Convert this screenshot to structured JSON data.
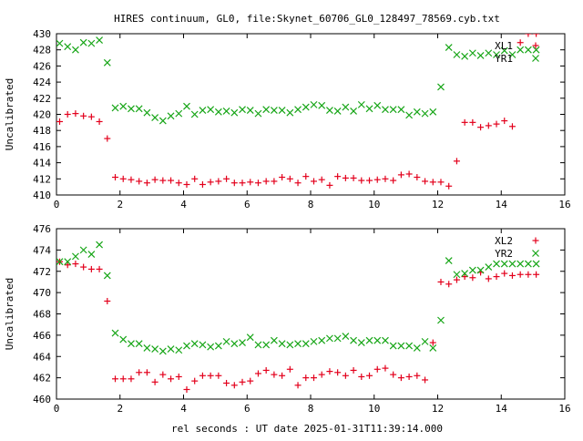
{
  "title": "HIRES continuum, GL0, file:Skynet_60706_GL0_128497_78569.cyb.txt",
  "xlabel": "rel seconds : UT date 2025-01-31T11:39:14.000",
  "colors": {
    "series1": "#e3001c",
    "series2": "#16a516",
    "axis": "#000000",
    "background": "#ffffff"
  },
  "chart_data": [
    {
      "type": "scatter",
      "ylabel": "Uncalibrated",
      "xlim": [
        0,
        16
      ],
      "ylim": [
        410,
        430
      ],
      "xticks": [
        0,
        2,
        4,
        6,
        8,
        10,
        12,
        14,
        16
      ],
      "yticks": [
        410,
        412,
        414,
        416,
        418,
        420,
        422,
        424,
        426,
        428,
        430
      ],
      "legend_position": "top-right",
      "grid": false,
      "series": [
        {
          "name": "XL1",
          "marker": "plus",
          "color": "#e3001c",
          "x": [
            0.1,
            0.35,
            0.6,
            0.85,
            1.1,
            1.35,
            1.6,
            1.85,
            2.1,
            2.35,
            2.6,
            2.85,
            3.1,
            3.35,
            3.6,
            3.85,
            4.1,
            4.35,
            4.6,
            4.85,
            5.1,
            5.35,
            5.6,
            5.85,
            6.1,
            6.35,
            6.6,
            6.85,
            7.1,
            7.35,
            7.6,
            7.85,
            8.1,
            8.35,
            8.6,
            8.85,
            9.1,
            9.35,
            9.6,
            9.85,
            10.1,
            10.35,
            10.6,
            10.85,
            11.1,
            11.35,
            11.6,
            11.85,
            12.1,
            12.35,
            12.6,
            12.85,
            13.1,
            13.35,
            13.6,
            13.85,
            14.1,
            14.35,
            14.6,
            14.85,
            15.1
          ],
          "y": [
            419.1,
            420.0,
            420.1,
            419.8,
            419.7,
            419.1,
            417.0,
            412.2,
            412.0,
            411.9,
            411.7,
            411.5,
            411.9,
            411.8,
            411.8,
            411.5,
            411.3,
            412.0,
            411.3,
            411.6,
            411.7,
            412.0,
            411.5,
            411.5,
            411.6,
            411.5,
            411.7,
            411.7,
            412.2,
            412.0,
            411.5,
            412.3,
            411.7,
            411.9,
            411.2,
            412.3,
            412.1,
            412.1,
            411.8,
            411.8,
            411.9,
            412.0,
            411.8,
            412.5,
            412.6,
            412.2,
            411.7,
            411.6,
            411.6,
            411.1,
            414.2,
            419.0,
            419.0,
            418.4,
            418.6,
            418.8,
            419.2,
            418.5,
            428.9,
            430.0,
            430.0
          ]
        },
        {
          "name": "YR1",
          "marker": "cross",
          "color": "#16a516",
          "x": [
            0.1,
            0.35,
            0.6,
            0.85,
            1.1,
            1.35,
            1.6,
            1.85,
            2.1,
            2.35,
            2.6,
            2.85,
            3.1,
            3.35,
            3.6,
            3.85,
            4.1,
            4.35,
            4.6,
            4.85,
            5.1,
            5.35,
            5.6,
            5.85,
            6.1,
            6.35,
            6.6,
            6.85,
            7.1,
            7.35,
            7.6,
            7.85,
            8.1,
            8.35,
            8.6,
            8.85,
            9.1,
            9.35,
            9.6,
            9.85,
            10.1,
            10.35,
            10.6,
            10.85,
            11.1,
            11.35,
            11.6,
            11.85,
            12.1,
            12.35,
            12.6,
            12.85,
            13.1,
            13.35,
            13.6,
            13.85,
            14.1,
            14.35,
            14.6,
            14.85,
            15.1
          ],
          "y": [
            428.8,
            428.4,
            428.0,
            428.9,
            428.8,
            429.2,
            426.4,
            420.8,
            421.0,
            420.7,
            420.7,
            420.2,
            419.6,
            419.2,
            419.8,
            420.1,
            421.0,
            420.0,
            420.5,
            420.6,
            420.3,
            420.4,
            420.2,
            420.6,
            420.5,
            420.1,
            420.6,
            420.5,
            420.5,
            420.2,
            420.6,
            420.9,
            421.2,
            421.1,
            420.5,
            420.4,
            420.9,
            420.4,
            421.2,
            420.7,
            421.1,
            420.6,
            420.6,
            420.6,
            419.9,
            420.3,
            420.1,
            420.3,
            423.4,
            428.3,
            427.4,
            427.2,
            427.6,
            427.3,
            427.6,
            427.4,
            427.9,
            427.4,
            428.0,
            428.0,
            428.0
          ]
        }
      ]
    },
    {
      "type": "scatter",
      "ylabel": "Uncalibrated",
      "xlim": [
        0,
        16
      ],
      "ylim": [
        460,
        476
      ],
      "xticks": [
        0,
        2,
        4,
        6,
        8,
        10,
        12,
        14,
        16
      ],
      "yticks": [
        460,
        462,
        464,
        466,
        468,
        470,
        472,
        474,
        476
      ],
      "legend_position": "top-right",
      "grid": false,
      "series": [
        {
          "name": "XL2",
          "marker": "plus",
          "color": "#e3001c",
          "x": [
            0.1,
            0.35,
            0.6,
            0.85,
            1.1,
            1.35,
            1.6,
            1.85,
            2.1,
            2.35,
            2.6,
            2.85,
            3.1,
            3.35,
            3.6,
            3.85,
            4.1,
            4.35,
            4.6,
            4.85,
            5.1,
            5.35,
            5.6,
            5.85,
            6.1,
            6.35,
            6.6,
            6.85,
            7.1,
            7.35,
            7.6,
            7.85,
            8.1,
            8.35,
            8.6,
            8.85,
            9.1,
            9.35,
            9.6,
            9.85,
            10.1,
            10.35,
            10.6,
            10.85,
            11.1,
            11.35,
            11.6,
            11.85,
            12.1,
            12.35,
            12.6,
            12.85,
            13.1,
            13.35,
            13.6,
            13.85,
            14.1,
            14.35,
            14.6,
            14.85,
            15.1
          ],
          "y": [
            472.9,
            472.6,
            472.7,
            472.4,
            472.2,
            472.2,
            469.2,
            461.9,
            461.9,
            461.9,
            462.5,
            462.5,
            461.6,
            462.3,
            461.9,
            462.1,
            460.9,
            461.7,
            462.2,
            462.2,
            462.2,
            461.5,
            461.3,
            461.6,
            461.7,
            462.4,
            462.7,
            462.3,
            462.2,
            462.8,
            461.3,
            462.0,
            462.0,
            462.3,
            462.6,
            462.5,
            462.2,
            462.7,
            462.1,
            462.2,
            462.8,
            462.9,
            462.3,
            462.0,
            462.1,
            462.2,
            461.8,
            465.3,
            471.0,
            470.8,
            471.2,
            471.5,
            471.4,
            471.9,
            471.3,
            471.5,
            471.8,
            471.6,
            471.7,
            471.7,
            471.7
          ]
        },
        {
          "name": "YR2",
          "marker": "cross",
          "color": "#16a516",
          "x": [
            0.1,
            0.35,
            0.6,
            0.85,
            1.1,
            1.35,
            1.6,
            1.85,
            2.1,
            2.35,
            2.6,
            2.85,
            3.1,
            3.35,
            3.6,
            3.85,
            4.1,
            4.35,
            4.6,
            4.85,
            5.1,
            5.35,
            5.6,
            5.85,
            6.1,
            6.35,
            6.6,
            6.85,
            7.1,
            7.35,
            7.6,
            7.85,
            8.1,
            8.35,
            8.6,
            8.85,
            9.1,
            9.35,
            9.6,
            9.85,
            10.1,
            10.35,
            10.6,
            10.85,
            11.1,
            11.35,
            11.6,
            11.85,
            12.1,
            12.35,
            12.6,
            12.85,
            13.1,
            13.35,
            13.6,
            13.85,
            14.1,
            14.35,
            14.6,
            14.85,
            15.1
          ],
          "y": [
            472.9,
            472.9,
            473.4,
            474.0,
            473.6,
            474.5,
            471.6,
            466.2,
            465.6,
            465.2,
            465.2,
            464.8,
            464.7,
            464.5,
            464.7,
            464.6,
            465.0,
            465.2,
            465.1,
            464.9,
            465.0,
            465.4,
            465.2,
            465.3,
            465.8,
            465.1,
            465.1,
            465.5,
            465.2,
            465.1,
            465.2,
            465.2,
            465.4,
            465.5,
            465.7,
            465.7,
            465.9,
            465.5,
            465.3,
            465.5,
            465.5,
            465.5,
            465.0,
            465.0,
            465.0,
            464.8,
            465.4,
            464.8,
            467.4,
            473.0,
            471.7,
            471.8,
            472.1,
            472.1,
            472.4,
            472.7,
            472.7,
            472.7,
            472.7,
            472.7,
            472.7
          ]
        }
      ]
    }
  ]
}
